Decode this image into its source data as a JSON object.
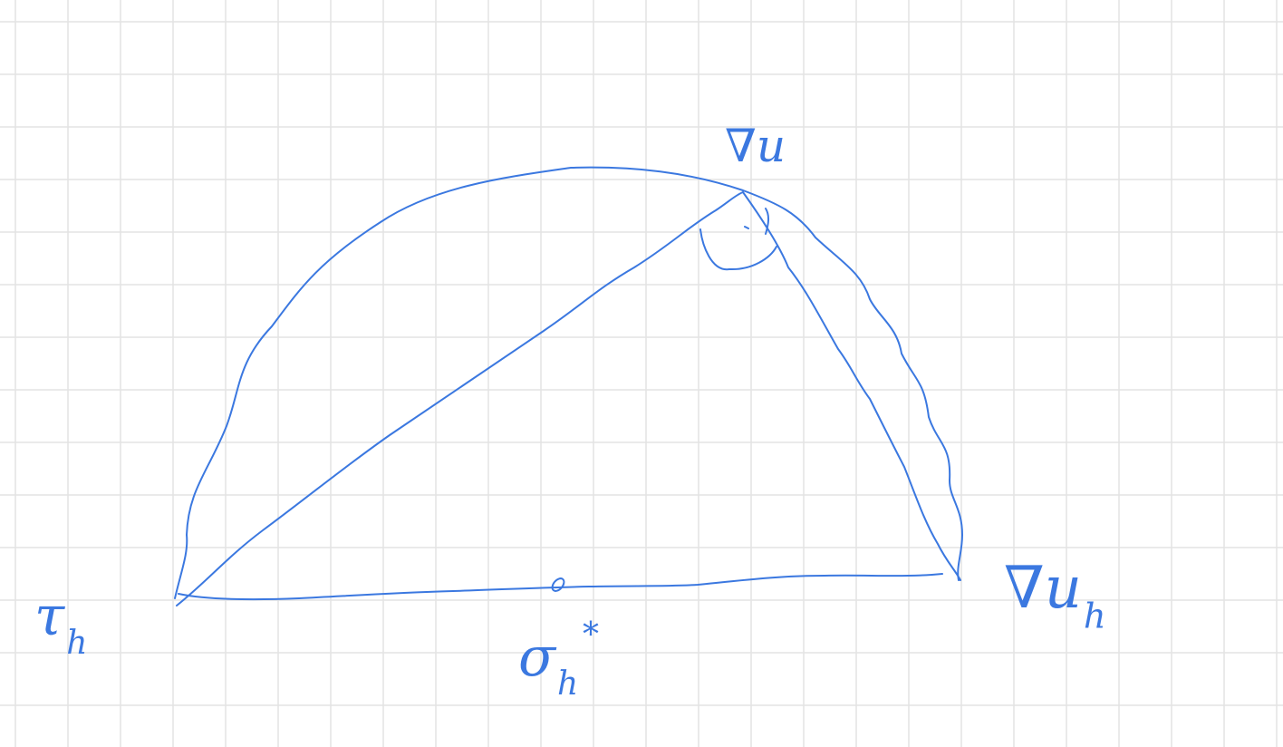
{
  "labels": [
    {
      "base": "∇u"
    },
    {
      "base": "τ",
      "sub": "h"
    },
    {
      "base": "σ",
      "sub": "h",
      "sup": "*"
    },
    {
      "base": "∇u",
      "sub": "h"
    }
  ]
}
